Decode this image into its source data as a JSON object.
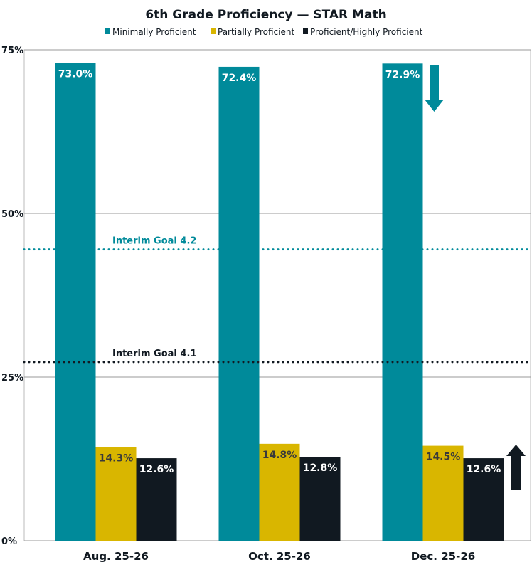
{
  "chart_data": {
    "type": "bar",
    "title": "6th Grade Proficiency — STAR Math",
    "categories": [
      "Aug. 25-26",
      "Oct. 25-26",
      "Dec. 25-26"
    ],
    "series": [
      {
        "name": "Minimally Proficient",
        "values": [
          73.0,
          72.4,
          72.9
        ],
        "labels": [
          "73.0%",
          "72.4%",
          "72.9%"
        ],
        "color": "#008A9A"
      },
      {
        "name": "Partially Proficient",
        "values": [
          14.3,
          14.8,
          14.5
        ],
        "labels": [
          "14.3%",
          "14.8%",
          "14.5%"
        ],
        "color": "#D9B600"
      },
      {
        "name": "Proficient/Highly Proficient",
        "values": [
          12.6,
          12.8,
          12.6
        ],
        "labels": [
          "12.6%",
          "12.8%",
          "12.6%"
        ],
        "color": "#111921"
      }
    ],
    "ylim": [
      0,
      75
    ],
    "yticks": [
      0,
      25,
      50,
      75
    ],
    "ytick_labels": [
      "0%",
      "25%",
      "50%",
      "75%"
    ],
    "grid": true,
    "legend": "top",
    "reference_lines": [
      {
        "label": "Interim Goal 4.2",
        "value": 44.5,
        "color": "#008A9A",
        "style": "dotted"
      },
      {
        "label": "Interim Goal 4.1",
        "value": 27.3,
        "color": "#111921",
        "style": "dotted"
      }
    ],
    "annotations": [
      {
        "type": "arrow-down",
        "category": "Dec. 25-26",
        "series": "Minimally Proficient",
        "color": "#008A9A"
      },
      {
        "type": "arrow-up",
        "category": "Dec. 25-26",
        "series": "Proficient/Highly Proficient",
        "color": "#111921"
      }
    ]
  }
}
